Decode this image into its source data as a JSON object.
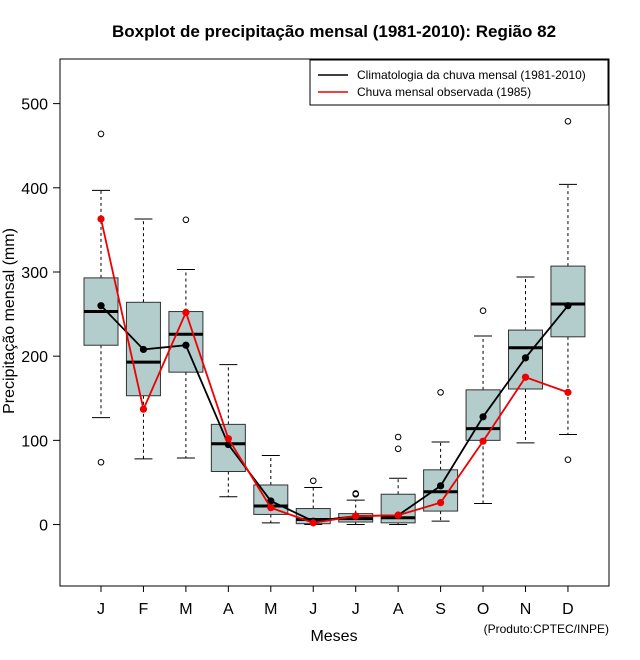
{
  "chart_data": {
    "type": "boxplot",
    "title": "Boxplot de precipitação mensal (1981-2010): Região 82",
    "xlabel": "Meses",
    "ylabel": "Precipitação mensal (mm)",
    "credit": "(Produto:CPTEC/INPE)",
    "ylim": [
      -73,
      553
    ],
    "yticks": [
      0,
      100,
      200,
      300,
      400,
      500
    ],
    "categories": [
      "J",
      "F",
      "M",
      "A",
      "M",
      "J",
      "J",
      "A",
      "S",
      "O",
      "N",
      "D"
    ],
    "boxes": [
      {
        "min": 127,
        "q1": 213,
        "median": 253,
        "q3": 293,
        "max": 397,
        "outliers": [
          464,
          74
        ]
      },
      {
        "min": 78,
        "q1": 153,
        "median": 193,
        "q3": 264,
        "max": 363,
        "outliers": []
      },
      {
        "min": 79,
        "q1": 181,
        "median": 226,
        "q3": 253,
        "max": 303,
        "outliers": [
          362
        ]
      },
      {
        "min": 33,
        "q1": 63,
        "median": 96,
        "q3": 119,
        "max": 190,
        "outliers": []
      },
      {
        "min": 2,
        "q1": 12,
        "median": 22,
        "q3": 47,
        "max": 82,
        "outliers": []
      },
      {
        "min": 0,
        "q1": 1,
        "median": 6,
        "q3": 19,
        "max": 44,
        "outliers": [
          52
        ]
      },
      {
        "min": 0,
        "q1": 3,
        "median": 7,
        "q3": 13,
        "max": 29,
        "outliers": [
          37,
          36
        ]
      },
      {
        "min": 0,
        "q1": 2,
        "median": 8,
        "q3": 36,
        "max": 55,
        "outliers": [
          104,
          90
        ]
      },
      {
        "min": 4,
        "q1": 16,
        "median": 39,
        "q3": 65,
        "max": 98,
        "outliers": [
          157
        ]
      },
      {
        "min": 25,
        "q1": 100,
        "median": 114,
        "q3": 160,
        "max": 224,
        "outliers": [
          254
        ]
      },
      {
        "min": 97,
        "q1": 161,
        "median": 210,
        "q3": 231,
        "max": 294,
        "outliers": []
      },
      {
        "min": 107,
        "q1": 223,
        "median": 262,
        "q3": 307,
        "max": 404,
        "outliers": [
          479,
          77
        ]
      }
    ],
    "series": [
      {
        "name": "Climatologia da chuva mensal (1981-2010)",
        "color": "#000000",
        "values": [
          260,
          208,
          213,
          95,
          28,
          4,
          10,
          11,
          46,
          128,
          198,
          260
        ]
      },
      {
        "name": "Chuva mensal observada (1985)",
        "color": "#ee0000",
        "values": [
          363,
          137,
          252,
          102,
          20,
          2,
          10,
          11,
          26,
          99,
          175,
          157
        ]
      }
    ],
    "legend_position": "top-right",
    "box_color": "#b3cccc"
  }
}
